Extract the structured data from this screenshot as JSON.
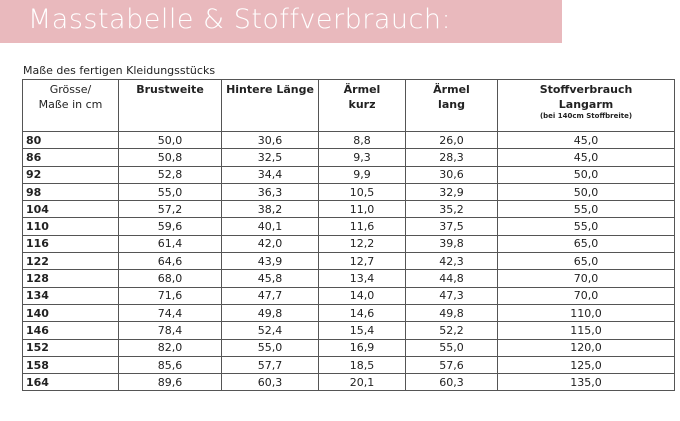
{
  "banner": {
    "title": "Masstabelle & Stoffverbrauch:"
  },
  "caption": "Maße des fertigen Kleidungsstücks",
  "table": {
    "headers": {
      "size_line1": "Grösse/",
      "size_line2": "Maße in cm",
      "chest": "Brustweite",
      "back_length": "Hintere Länge",
      "sleeve_short_line1": "Ärmel",
      "sleeve_short_line2": "kurz",
      "sleeve_long_line1": "Ärmel",
      "sleeve_long_line2": "lang",
      "fabric_line1": "Stoffverbrauch",
      "fabric_line2": "Langarm",
      "fabric_note": "(bei 140cm Stoffbreite)"
    },
    "rows": [
      [
        "80",
        "50,0",
        "30,6",
        "8,8",
        "26,0",
        "45,0"
      ],
      [
        "86",
        "50,8",
        "32,5",
        "9,3",
        "28,3",
        "45,0"
      ],
      [
        "92",
        "52,8",
        "34,4",
        "9,9",
        "30,6",
        "50,0"
      ],
      [
        "98",
        "55,0",
        "36,3",
        "10,5",
        "32,9",
        "50,0"
      ],
      [
        "104",
        "57,2",
        "38,2",
        "11,0",
        "35,2",
        "55,0"
      ],
      [
        "110",
        "59,6",
        "40,1",
        "11,6",
        "37,5",
        "55,0"
      ],
      [
        "116",
        "61,4",
        "42,0",
        "12,2",
        "39,8",
        "65,0"
      ],
      [
        "122",
        "64,6",
        "43,9",
        "12,7",
        "42,3",
        "65,0"
      ],
      [
        "128",
        "68,0",
        "45,8",
        "13,4",
        "44,8",
        "70,0"
      ],
      [
        "134",
        "71,6",
        "47,7",
        "14,0",
        "47,3",
        "70,0"
      ],
      [
        "140",
        "74,4",
        "49,8",
        "14,6",
        "49,8",
        "110,0"
      ],
      [
        "146",
        "78,4",
        "52,4",
        "15,4",
        "52,2",
        "115,0"
      ],
      [
        "152",
        "82,0",
        "55,0",
        "16,9",
        "55,0",
        "120,0"
      ],
      [
        "158",
        "85,6",
        "57,7",
        "18,5",
        "57,6",
        "125,0"
      ],
      [
        "164",
        "89,6",
        "60,3",
        "20,1",
        "60,3",
        "135,0"
      ]
    ]
  }
}
